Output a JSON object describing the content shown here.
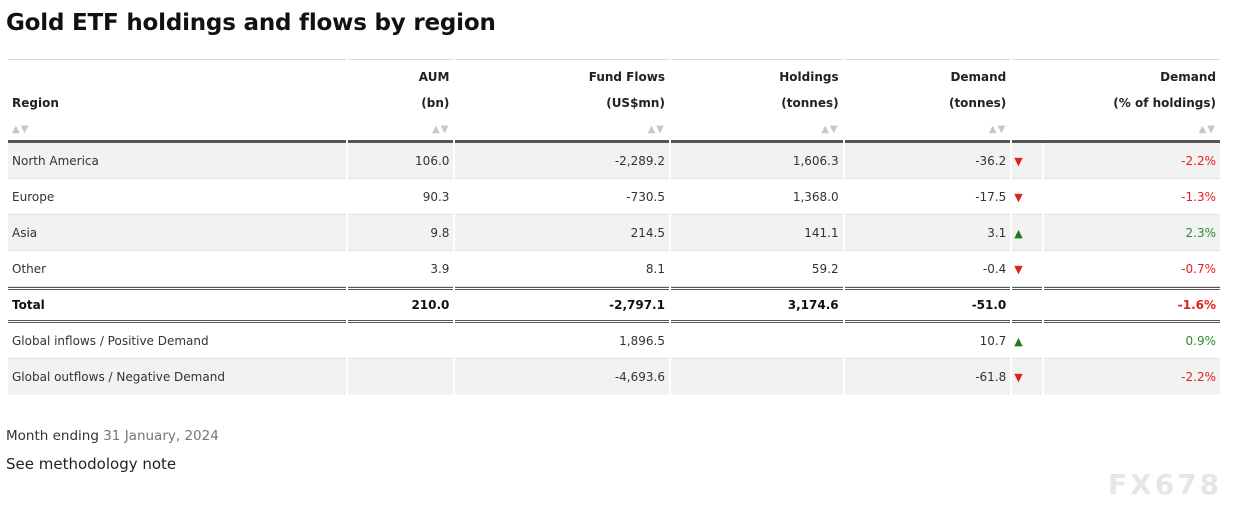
{
  "title": "Gold ETF holdings and flows by region",
  "sort_glyph": "▲▼",
  "columns": {
    "region": {
      "line1": "",
      "line2": "Region"
    },
    "aum": {
      "line1": "AUM",
      "line2": "(bn)"
    },
    "flows": {
      "line1": "Fund Flows",
      "line2": "(US$mn)"
    },
    "holdings": {
      "line1": "Holdings",
      "line2": "(tonnes)"
    },
    "demand": {
      "line1": "Demand",
      "line2": "(tonnes)"
    },
    "demand_pct": {
      "line1": "Demand",
      "line2": "(% of holdings)"
    }
  },
  "rows": [
    {
      "region": "North America",
      "aum": "106.0",
      "flows": "-2,289.2",
      "holdings": "1,606.3",
      "demand": "-36.2",
      "direction": "down",
      "pct": "-2.2%"
    },
    {
      "region": "Europe",
      "aum": "90.3",
      "flows": "-730.5",
      "holdings": "1,368.0",
      "demand": "-17.5",
      "direction": "down",
      "pct": "-1.3%"
    },
    {
      "region": "Asia",
      "aum": "9.8",
      "flows": "214.5",
      "holdings": "141.1",
      "demand": "3.1",
      "direction": "up",
      "pct": "2.3%"
    },
    {
      "region": "Other",
      "aum": "3.9",
      "flows": "8.1",
      "holdings": "59.2",
      "demand": "-0.4",
      "direction": "down",
      "pct": "-0.7%"
    }
  ],
  "total": {
    "region": "Total",
    "aum": "210.0",
    "flows": "-2,797.1",
    "holdings": "3,174.6",
    "demand": "-51.0",
    "pct": "-1.6%"
  },
  "global": [
    {
      "region": "Global inflows / Positive Demand",
      "aum": "",
      "flows": "1,896.5",
      "holdings": "",
      "demand": "10.7",
      "direction": "up",
      "pct": "0.9%"
    },
    {
      "region": "Global outflows / Negative Demand",
      "aum": "",
      "flows": "-4,693.6",
      "holdings": "",
      "demand": "-61.8",
      "direction": "down",
      "pct": "-2.2%"
    }
  ],
  "arrows": {
    "up": "▲",
    "down": "▼"
  },
  "colors": {
    "negative": "#e0201b",
    "positive": "#1e7b1e",
    "shade": "#f2f2f2"
  },
  "footer": {
    "month_label": "Month ending",
    "month_date": "31 January, 2024",
    "methodology": "See methodology note"
  },
  "watermark": "FX678"
}
